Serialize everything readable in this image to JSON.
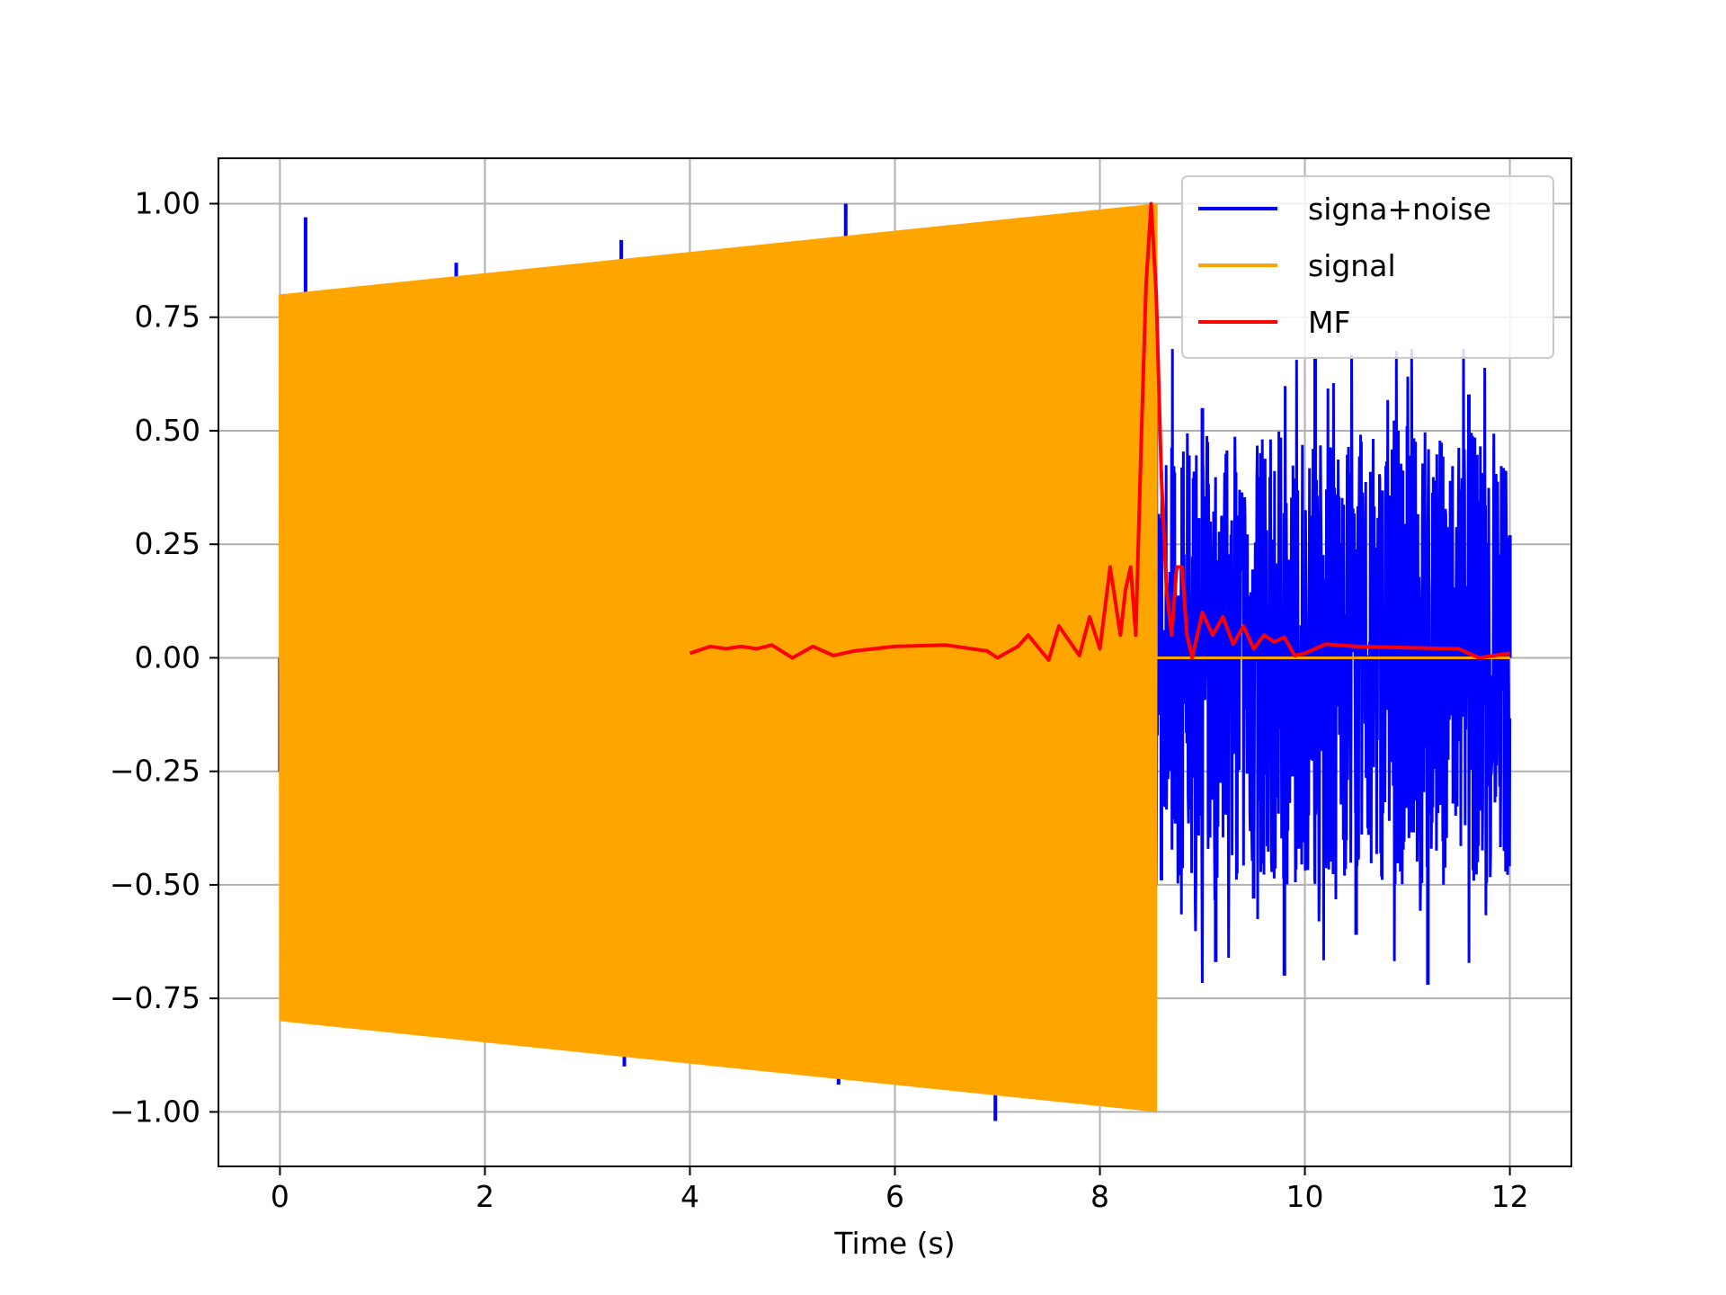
{
  "chart_data": {
    "type": "line",
    "title": "",
    "xlabel": "Time (s)",
    "ylabel": "",
    "xlim": [
      -0.6,
      12.6
    ],
    "ylim": [
      -1.12,
      1.1
    ],
    "grid": true,
    "legend_position": "top-right",
    "x_ticks": [
      0,
      2,
      4,
      6,
      8,
      10,
      12
    ],
    "x_tick_labels": [
      "0",
      "2",
      "4",
      "6",
      "8",
      "10",
      "12"
    ],
    "y_ticks": [
      1.0,
      0.75,
      0.5,
      0.25,
      0.0,
      -0.25,
      -0.5,
      -0.75,
      -1.0
    ],
    "y_tick_labels": [
      "1.00",
      "0.75",
      "0.50",
      "0.25",
      "0.00",
      "−0.25",
      "−0.50",
      "−0.75",
      "−1.00"
    ],
    "series": [
      {
        "name": "signa+noise",
        "color": "#0000ff",
        "description_visible": "signal plus random noise spikes over 0 to 12 s",
        "x": [
          0.0,
          0.25,
          0.67,
          1.72,
          3.33,
          3.36,
          3.72,
          5.45,
          5.52,
          6.98,
          8.55,
          8.6,
          9.0,
          9.13,
          9.5,
          9.8,
          10.1,
          10.5,
          11.0,
          11.2,
          11.6,
          12.0
        ],
        "values": [
          -0.25,
          0.97,
          -0.81,
          0.87,
          0.92,
          -0.9,
          0.86,
          -0.94,
          1.0,
          -1.02,
          0.68,
          -0.49,
          0.55,
          -0.67,
          -0.53,
          -0.7,
          0.66,
          -0.61,
          0.51,
          -0.72,
          0.58,
          0.27
        ]
      },
      {
        "name": "signal",
        "color": "#ffa500",
        "description_visible": "oscillating chirp with envelope growing from 0.8 at t=0 to 1.0 at t=8.55, zero afterwards",
        "x": [
          0.0,
          8.55,
          12.0
        ],
        "envelope": [
          0.8,
          1.0,
          0.0
        ]
      },
      {
        "name": "MF",
        "color": "#ff0000",
        "x": [
          4.0,
          4.2,
          4.35,
          4.5,
          4.65,
          4.8,
          5.0,
          5.2,
          5.4,
          5.6,
          6.0,
          6.5,
          6.9,
          7.0,
          7.2,
          7.3,
          7.5,
          7.6,
          7.8,
          7.9,
          8.0,
          8.1,
          8.2,
          8.25,
          8.3,
          8.35,
          8.4,
          8.45,
          8.5,
          8.55,
          8.6,
          8.65,
          8.7,
          8.75,
          8.8,
          8.85,
          8.9,
          9.0,
          9.1,
          9.2,
          9.3,
          9.4,
          9.5,
          9.6,
          9.7,
          9.8,
          9.9,
          10.0,
          10.2,
          10.5,
          11.0,
          11.5,
          11.7,
          12.0
        ],
        "values": [
          0.01,
          0.025,
          0.02,
          0.025,
          0.02,
          0.028,
          0.0,
          0.025,
          0.005,
          0.015,
          0.025,
          0.028,
          0.015,
          0.0,
          0.025,
          0.05,
          -0.005,
          0.07,
          0.005,
          0.09,
          0.02,
          0.2,
          0.05,
          0.15,
          0.2,
          0.05,
          0.45,
          0.82,
          1.0,
          0.8,
          0.4,
          0.15,
          0.05,
          0.2,
          0.2,
          0.05,
          0.0,
          0.1,
          0.05,
          0.09,
          0.03,
          0.07,
          0.02,
          0.05,
          0.035,
          0.045,
          0.005,
          0.01,
          0.03,
          0.025,
          0.022,
          0.02,
          0.0,
          0.01
        ]
      }
    ]
  }
}
